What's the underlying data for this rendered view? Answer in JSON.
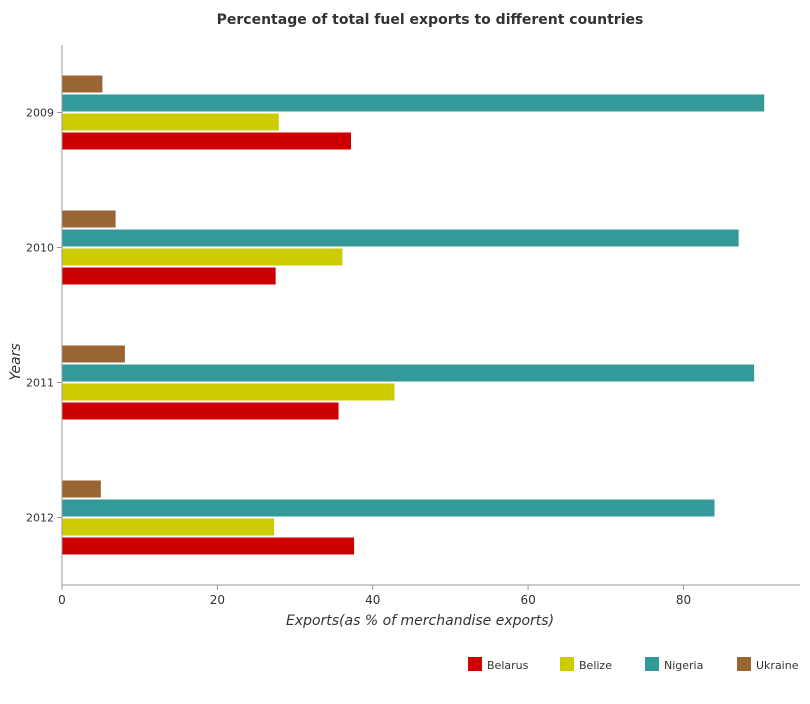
{
  "chart_data": {
    "type": "bar",
    "orientation": "horizontal",
    "title": "Percentage of total fuel exports to different countries",
    "xlabel": "Exports(as % of merchandise exports)",
    "ylabel": "Years",
    "categories": [
      "2009",
      "2010",
      "2011",
      "2012"
    ],
    "xlim": [
      0,
      95
    ],
    "xticks": [
      0,
      20,
      40,
      60,
      80
    ],
    "grid": false,
    "legend_position": "bottom-right",
    "series": [
      {
        "name": "Belarus",
        "color": "#cc0000",
        "values": [
          37.2,
          27.5,
          35.6,
          37.6
        ]
      },
      {
        "name": "Belize",
        "color": "#cccc00",
        "values": [
          27.9,
          36.1,
          42.8,
          27.3
        ]
      },
      {
        "name": "Nigeria",
        "color": "#339999",
        "values": [
          90.4,
          87.1,
          89.1,
          84.0
        ]
      },
      {
        "name": "Ukraine",
        "color": "#996633",
        "values": [
          5.2,
          6.9,
          8.1,
          5.0
        ]
      }
    ]
  }
}
